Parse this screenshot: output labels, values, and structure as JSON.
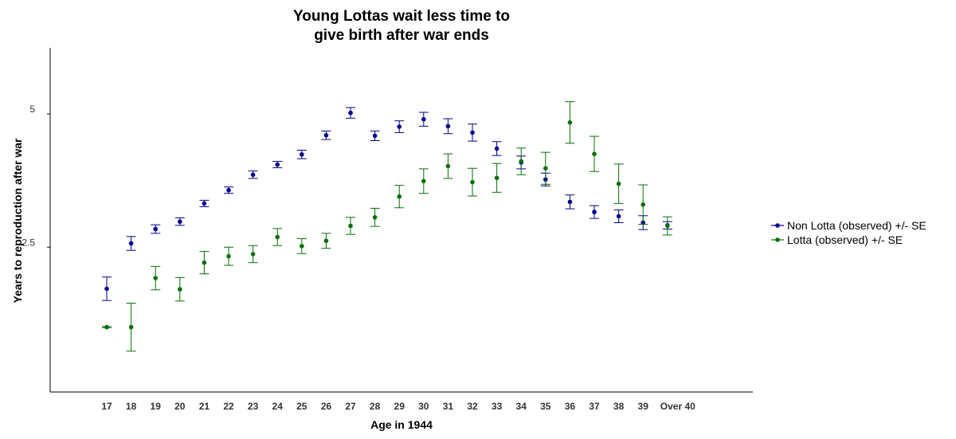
{
  "chart_data": {
    "type": "scatter",
    "title_lines": [
      "Young Lottas wait less time to",
      "give birth after war ends"
    ],
    "xlabel": "Age in 1944",
    "ylabel": "Years to reproduction after war",
    "categories": [
      "17",
      "18",
      "19",
      "20",
      "21",
      "22",
      "23",
      "24",
      "25",
      "26",
      "27",
      "28",
      "29",
      "30",
      "31",
      "32",
      "33",
      "34",
      "35",
      "36",
      "37",
      "38",
      "39",
      "Over 40"
    ],
    "y_ticks": [
      {
        "value": 2.5,
        "label": "2.5"
      },
      {
        "value": 5,
        "label": "5"
      }
    ],
    "ylim": [
      -0.3,
      6.3
    ],
    "error_bars": true,
    "grid": false,
    "legend_position": "right",
    "series": [
      {
        "name": "Non Lotta (observed) +/- SE",
        "color": "#00008b",
        "values": [
          1.72,
          2.57,
          2.84,
          2.98,
          3.32,
          3.57,
          3.86,
          4.05,
          4.24,
          4.6,
          5.02,
          4.59,
          4.76,
          4.9,
          4.77,
          4.65,
          4.35,
          4.09,
          3.77,
          3.35,
          3.16,
          3.08,
          2.96,
          2.91
        ],
        "se": [
          0.22,
          0.13,
          0.08,
          0.07,
          0.06,
          0.06,
          0.07,
          0.06,
          0.08,
          0.08,
          0.1,
          0.09,
          0.11,
          0.13,
          0.14,
          0.16,
          0.13,
          0.12,
          0.12,
          0.13,
          0.12,
          0.12,
          0.13,
          0.07
        ]
      },
      {
        "name": "Lotta (observed) +/- SE",
        "color": "#0a6e0a",
        "values": [
          1.0,
          1.0,
          1.92,
          1.71,
          2.21,
          2.33,
          2.37,
          2.69,
          2.52,
          2.62,
          2.9,
          3.06,
          3.45,
          3.74,
          4.02,
          3.72,
          3.8,
          4.11,
          3.98,
          4.84,
          4.25,
          3.69,
          3.3,
          2.9
        ],
        "se": [
          0.01,
          0.45,
          0.22,
          0.22,
          0.21,
          0.17,
          0.16,
          0.16,
          0.14,
          0.14,
          0.16,
          0.17,
          0.21,
          0.23,
          0.23,
          0.26,
          0.27,
          0.25,
          0.3,
          0.39,
          0.33,
          0.37,
          0.37,
          0.17
        ]
      }
    ]
  }
}
